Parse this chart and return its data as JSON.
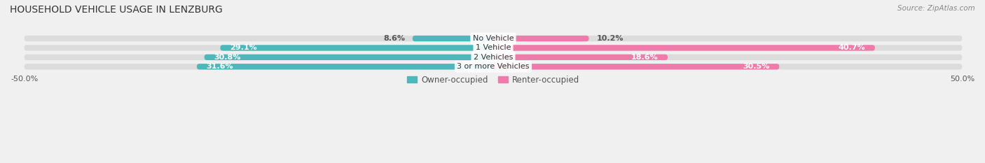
{
  "title": "HOUSEHOLD VEHICLE USAGE IN LENZBURG",
  "source": "Source: ZipAtlas.com",
  "categories": [
    "No Vehicle",
    "1 Vehicle",
    "2 Vehicles",
    "3 or more Vehicles"
  ],
  "owner_values": [
    8.6,
    29.1,
    30.8,
    31.6
  ],
  "renter_values": [
    10.2,
    40.7,
    18.6,
    30.5
  ],
  "owner_color": "#4db8bc",
  "renter_color": "#f07aaa",
  "owner_label": "Owner-occupied",
  "renter_label": "Renter-occupied",
  "background_color": "#f0f0f0",
  "bar_bg_color": "#dcdcdc",
  "title_fontsize": 10,
  "source_fontsize": 7.5,
  "label_fontsize": 8,
  "axis_fontsize": 8
}
